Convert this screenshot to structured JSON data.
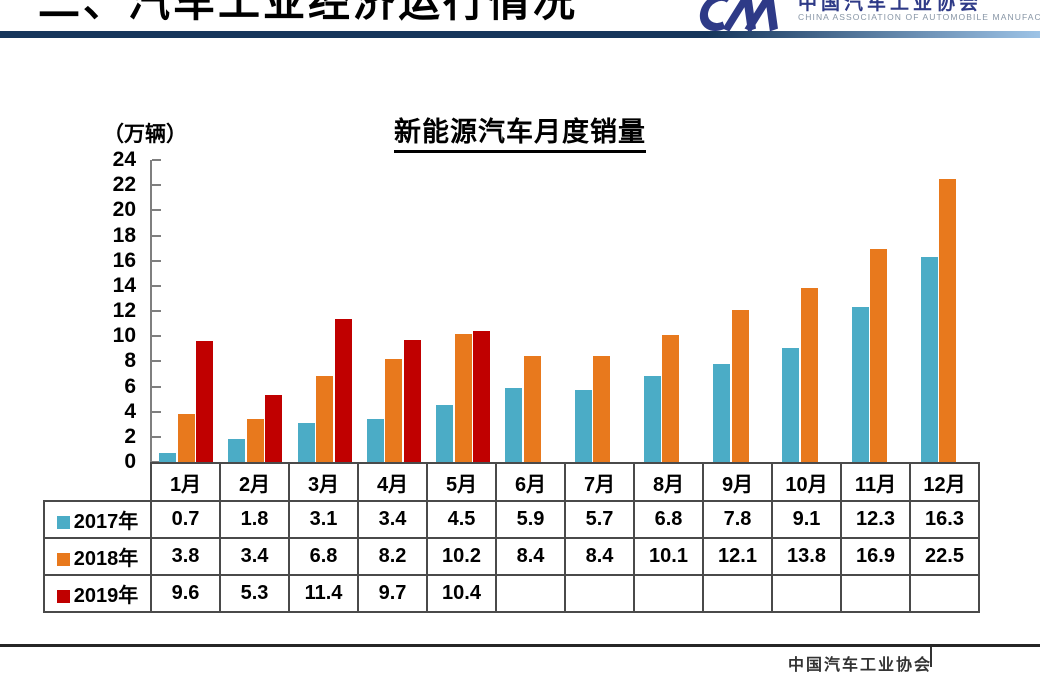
{
  "page": {
    "title": "二、汽车工业经济运行情况",
    "footer_org": "中国汽车工业协会"
  },
  "logo": {
    "name_cn": "中国汽车工业协会",
    "name_en": "CHINA ASSOCIATION OF AUTOMOBILE MANUFACTURERS",
    "mark_color": "#2e3a87"
  },
  "chart_data": {
    "type": "bar",
    "title": "新能源汽车月度销量",
    "unit_label": "（万辆）",
    "categories": [
      "1月",
      "2月",
      "3月",
      "4月",
      "5月",
      "6月",
      "7月",
      "8月",
      "9月",
      "10月",
      "11月",
      "12月"
    ],
    "series": [
      {
        "name": "2017年",
        "color": "#4bacc6",
        "values": [
          0.7,
          1.8,
          3.1,
          3.4,
          4.5,
          5.9,
          5.7,
          6.8,
          7.8,
          9.1,
          12.3,
          16.3
        ]
      },
      {
        "name": "2018年",
        "color": "#e8791d",
        "values": [
          3.8,
          3.4,
          6.8,
          8.2,
          10.2,
          8.4,
          8.4,
          10.1,
          12.1,
          13.8,
          16.9,
          22.5
        ]
      },
      {
        "name": "2019年",
        "color": "#c00000",
        "values": [
          9.6,
          5.3,
          11.4,
          9.7,
          10.4,
          null,
          null,
          null,
          null,
          null,
          null,
          null
        ]
      }
    ],
    "ylim": [
      0,
      24
    ],
    "ytick_step": 2,
    "grid": false,
    "legend_position": "table-left"
  }
}
